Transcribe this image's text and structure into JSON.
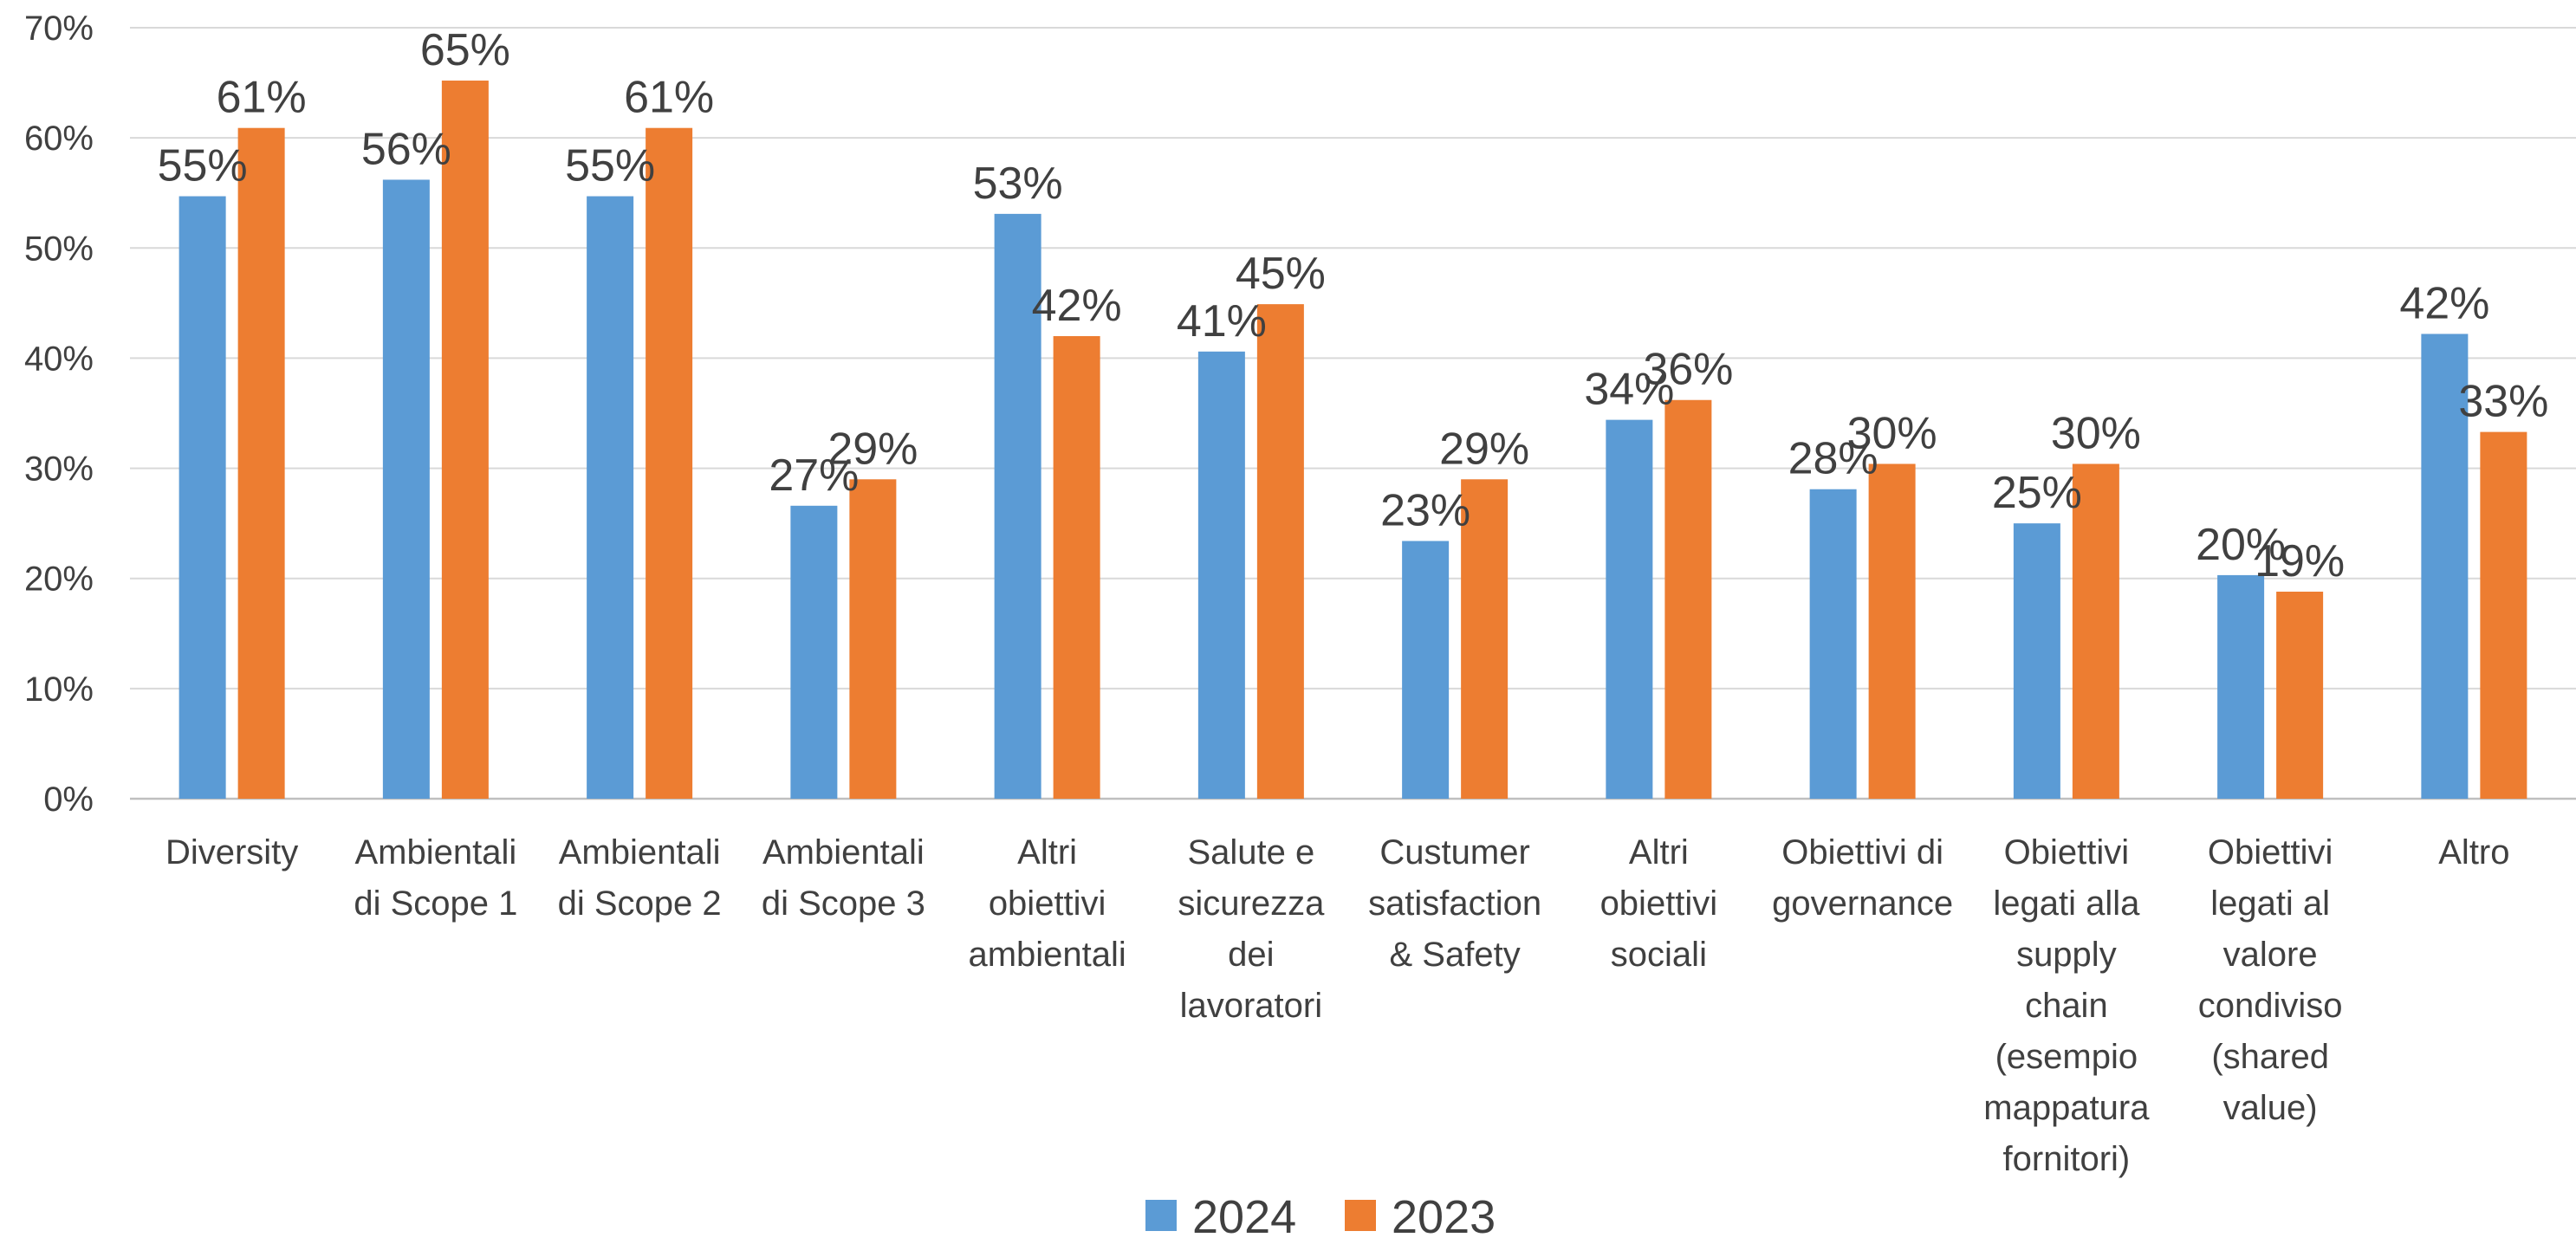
{
  "chart_data": {
    "type": "bar",
    "categories": [
      [
        "Diversity"
      ],
      [
        "Ambientali",
        "di Scope 1"
      ],
      [
        "Ambientali",
        "di Scope 2"
      ],
      [
        "Ambientali",
        "di Scope 3"
      ],
      [
        "Altri",
        "obiettivi",
        "ambientali"
      ],
      [
        "Salute e",
        "sicurezza",
        "dei",
        "lavoratori"
      ],
      [
        "Custumer",
        "satisfaction",
        "& Safety"
      ],
      [
        "Altri",
        "obiettivi",
        "sociali"
      ],
      [
        "Obiettivi di",
        "governance"
      ],
      [
        "Obiettivi",
        "legati alla",
        "supply",
        "chain",
        "(esempio",
        "mappatura",
        "fornitori)"
      ],
      [
        "Obiettivi",
        "legati al",
        "valore",
        "condiviso",
        "(shared",
        "value)"
      ],
      [
        "Altro"
      ]
    ],
    "series": [
      {
        "name": "2024",
        "color": "#5b9bd5",
        "values": [
          0.547,
          0.562,
          0.547,
          0.266,
          0.531,
          0.406,
          0.234,
          0.344,
          0.281,
          0.25,
          0.203,
          0.422
        ],
        "labels": [
          "55%",
          "56%",
          "55%",
          "27%",
          "53%",
          "41%",
          "23%",
          "34%",
          "28%",
          "25%",
          "20%",
          "42%"
        ]
      },
      {
        "name": "2023",
        "color": "#ed7d31",
        "values": [
          0.609,
          0.652,
          0.609,
          0.29,
          0.42,
          0.449,
          0.29,
          0.362,
          0.304,
          0.304,
          0.188,
          0.333
        ],
        "labels": [
          "61%",
          "65%",
          "61%",
          "29%",
          "42%",
          "45%",
          "29%",
          "36%",
          "30%",
          "30%",
          "19%",
          "33%"
        ]
      }
    ],
    "yticks": [
      "0%",
      "10%",
      "20%",
      "30%",
      "40%",
      "50%",
      "60%",
      "70%"
    ],
    "ylim": [
      0,
      0.7
    ],
    "grid": true,
    "legend": "bottom-center",
    "title": "",
    "xlabel": "",
    "ylabel": ""
  }
}
